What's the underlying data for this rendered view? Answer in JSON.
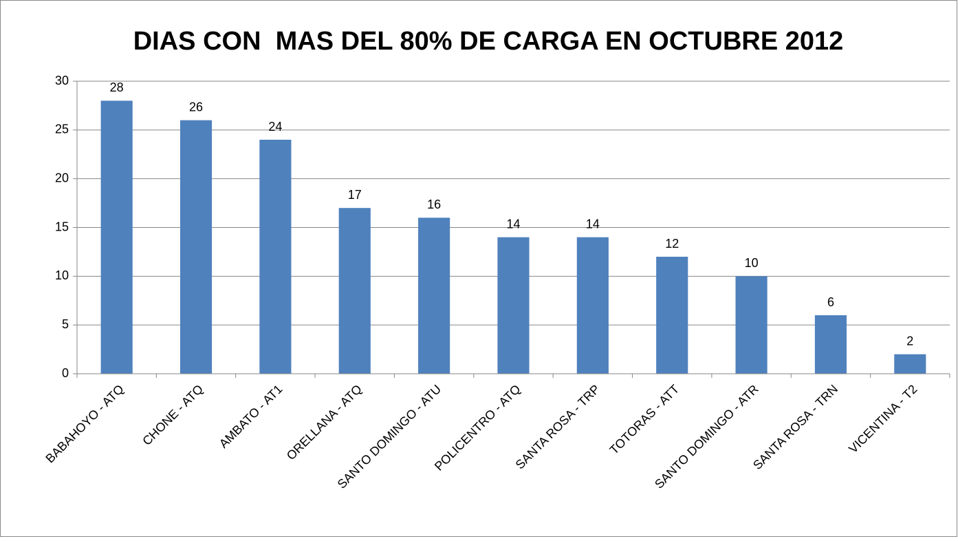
{
  "chart_data": {
    "type": "bar",
    "title": "DIAS CON  MAS DEL 80% DE CARGA EN OCTUBRE 2012",
    "categories": [
      "BABAHOYO - ATQ",
      "CHONE - ATQ",
      "AMBATO - AT1",
      "ORELLANA - ATQ",
      "SANTO DOMINGO - ATU",
      "POLICENTRO - ATQ",
      "SANTA ROSA - TRP",
      "TOTORAS - ATT",
      "SANTO DOMINGO - ATR",
      "SANTA ROSA - TRN",
      "VICENTINA - T2"
    ],
    "values": [
      28,
      26,
      24,
      17,
      16,
      14,
      14,
      12,
      10,
      6,
      2
    ],
    "color": "#4f81bd",
    "ylim": [
      0,
      30
    ],
    "yticks": [
      0,
      5,
      10,
      15,
      20,
      25,
      30
    ],
    "grid": true
  }
}
